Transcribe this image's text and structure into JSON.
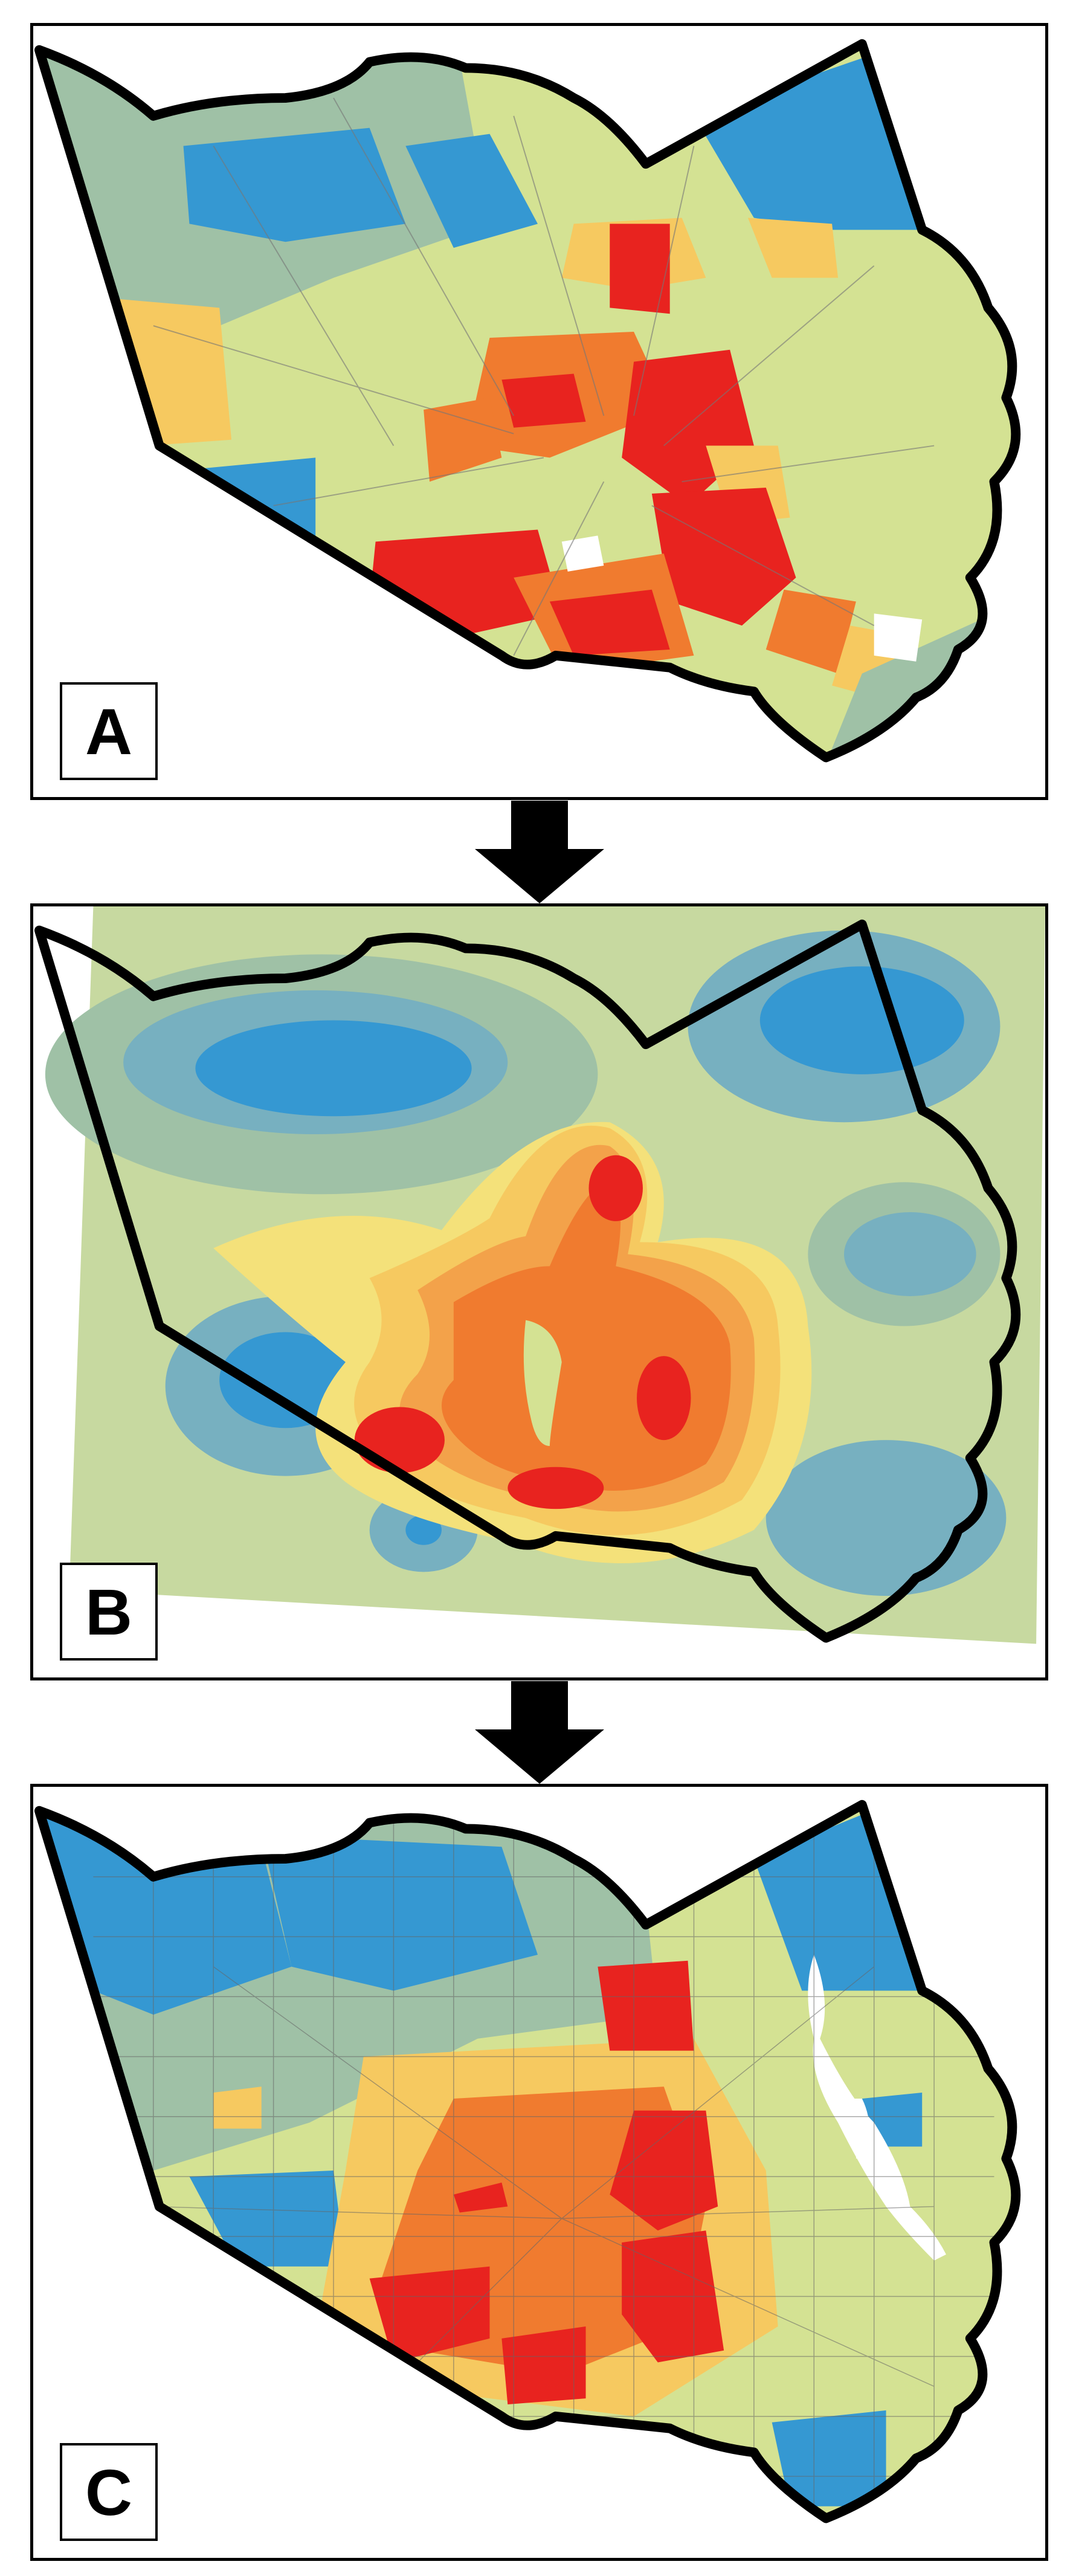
{
  "panels": [
    {
      "label": "A"
    },
    {
      "label": "B"
    },
    {
      "label": "C"
    }
  ],
  "colors": {
    "class_1_high": "#e8231f",
    "class_2": "#f07b2f",
    "class_3": "#f6c960",
    "class_4": "#d4e293",
    "class_5": "#9fc1a6",
    "class_6_low": "#3598d2",
    "outline": "#000000"
  },
  "icons": [
    "down-arrow-icon",
    "down-arrow-icon"
  ]
}
